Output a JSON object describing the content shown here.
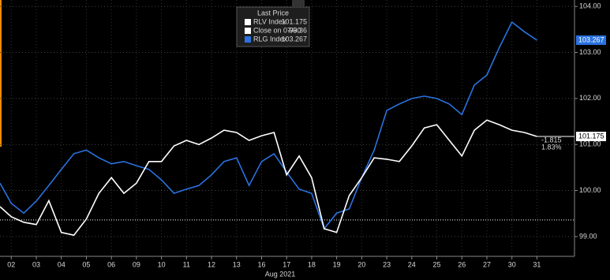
{
  "chart_data": {
    "type": "line",
    "legend_title": "Last Price",
    "x_label": "Aug 2021",
    "x": [
      -0.45,
      0,
      0.5,
      1,
      1.5,
      2,
      2.5,
      3,
      3.5,
      4,
      4.5,
      5,
      5.5,
      6,
      6.5,
      7,
      7.5,
      8,
      8.5,
      9,
      9.5,
      10,
      10.5,
      11,
      11.5,
      12,
      12.5,
      13,
      13.5,
      14,
      14.5,
      15,
      15.5,
      16,
      16.5,
      17,
      17.5,
      18,
      18.5,
      19,
      19.5,
      20,
      20.5,
      21
    ],
    "series": [
      {
        "name": "RLV Index",
        "color": "#ffffff",
        "values": [
          99.65,
          99.43,
          99.31,
          99.26,
          99.78,
          99.09,
          99.03,
          99.38,
          99.94,
          100.28,
          99.94,
          100.16,
          100.63,
          100.63,
          100.97,
          101.09,
          101.0,
          101.14,
          101.31,
          101.26,
          101.09,
          101.19,
          101.26,
          100.34,
          100.75,
          100.28,
          99.17,
          99.09,
          99.89,
          100.28,
          100.71,
          100.68,
          100.63,
          100.97,
          101.36,
          101.43,
          101.09,
          100.75,
          101.31,
          101.53,
          101.43,
          101.31,
          101.26,
          101.175
        ]
      },
      {
        "name": "RLG Index",
        "color": "#2a72e0",
        "values": [
          100.16,
          99.72,
          99.51,
          99.77,
          100.11,
          100.46,
          100.8,
          100.88,
          100.71,
          100.58,
          100.63,
          100.54,
          100.46,
          100.23,
          99.94,
          100.03,
          100.11,
          100.34,
          100.63,
          100.71,
          100.11,
          100.63,
          100.8,
          100.4,
          100.03,
          99.94,
          99.17,
          99.51,
          99.6,
          100.28,
          100.88,
          101.74,
          101.88,
          102.0,
          102.05,
          102.0,
          101.88,
          101.65,
          102.29,
          102.51,
          103.11,
          103.66,
          103.45,
          103.267
        ]
      }
    ],
    "close": {
      "label": "Close on 07/30",
      "value": 99.36,
      "color": "#ffffff"
    },
    "change_labels": [
      "-1.815",
      "1.83%"
    ],
    "xlim": [
      -0.45,
      22.5
    ],
    "ylim": [
      98.57,
      104.14
    ],
    "xticks": [
      {
        "value": 0,
        "label": "02"
      },
      {
        "value": 1,
        "label": "03"
      },
      {
        "value": 2,
        "label": "04"
      },
      {
        "value": 3,
        "label": "05"
      },
      {
        "value": 4,
        "label": "06"
      },
      {
        "value": 5,
        "label": "09"
      },
      {
        "value": 6,
        "label": "10"
      },
      {
        "value": 7,
        "label": "11"
      },
      {
        "value": 8,
        "label": "12"
      },
      {
        "value": 9,
        "label": "13"
      },
      {
        "value": 10,
        "label": "16"
      },
      {
        "value": 11,
        "label": "17"
      },
      {
        "value": 12,
        "label": "18"
      },
      {
        "value": 13,
        "label": "19"
      },
      {
        "value": 14,
        "label": "20"
      },
      {
        "value": 15,
        "label": "23"
      },
      {
        "value": 16,
        "label": "24"
      },
      {
        "value": 17,
        "label": "25"
      },
      {
        "value": 18,
        "label": "26"
      },
      {
        "value": 19,
        "label": "27"
      },
      {
        "value": 20,
        "label": "30"
      },
      {
        "value": 21,
        "label": "31"
      }
    ],
    "yticks": [
      {
        "value": 99,
        "label": "99.00"
      },
      {
        "value": 100,
        "label": "100.00"
      },
      {
        "value": 101,
        "label": "101.00"
      },
      {
        "value": 102,
        "label": "102.00"
      },
      {
        "value": 103,
        "label": "103.00"
      },
      {
        "value": 104,
        "label": "104.00"
      }
    ],
    "grid": true
  }
}
